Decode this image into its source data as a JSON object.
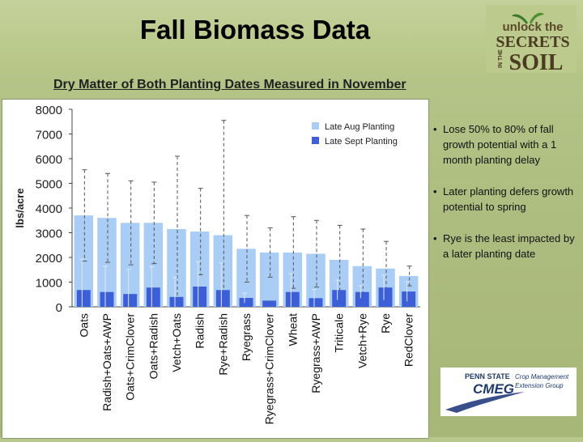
{
  "title": "Fall Biomass Data",
  "subtitle": "Dry Matter of Both Planting Dates Measured in November",
  "logo": {
    "line1": "unlock the",
    "line2": "SECRETS",
    "line3": "SOIL",
    "side": "IN THE",
    "icon": "sprout-icon"
  },
  "bullets": [
    "Lose 50% to 80% of fall growth potential with a 1 month planting delay",
    "Later planting defers growth potential to spring",
    "Rye is the least impacted by a later planting date"
  ],
  "psu_logo": {
    "line1": "PENN STATE",
    "line2": "CMEG",
    "line3": "Crop Management",
    "line4": "Extension Group"
  },
  "chart_data": {
    "type": "bar",
    "ylabel": "lbs/acre",
    "ylim": [
      0,
      8000
    ],
    "yticks": [
      "0",
      "1000",
      "2000",
      "3000",
      "4000",
      "5000",
      "6000",
      "7000",
      "8000"
    ],
    "grid": false,
    "legend_position": "top-right",
    "categories": [
      "Oats",
      "Radish+Oats+AWP",
      "Oats+CrimClover",
      "Oats+Radish",
      "Vetch+Oats",
      "Radish",
      "Rye+Radish",
      "Ryegrass",
      "Ryegrass+CrimClover",
      "Wheat",
      "Ryegrass+AWP",
      "Triticale",
      "Vetch+Rye",
      "Rye",
      "RedClover"
    ],
    "series": [
      {
        "name": "Late Aug Planting",
        "color": "#a9cdf5",
        "values": [
          3700,
          3600,
          3400,
          3400,
          3150,
          3050,
          2900,
          2350,
          2200,
          2200,
          2150,
          1900,
          1650,
          1550,
          1250
        ],
        "err": [
          1850,
          1800,
          1700,
          1650,
          2950,
          1750,
          4650,
          1350,
          1000,
          1450,
          1350,
          1400,
          1500,
          1100,
          400
        ]
      },
      {
        "name": "Late Sept Planting",
        "color": "#3c5fd8",
        "values": [
          680,
          600,
          520,
          780,
          400,
          820,
          680,
          360,
          250,
          600,
          350,
          680,
          600,
          780,
          620
        ],
        "err": [
          1250,
          1050,
          1000,
          850,
          800,
          1000,
          1100,
          200,
          0,
          750,
          350,
          400,
          250,
          500,
          400
        ]
      }
    ]
  }
}
